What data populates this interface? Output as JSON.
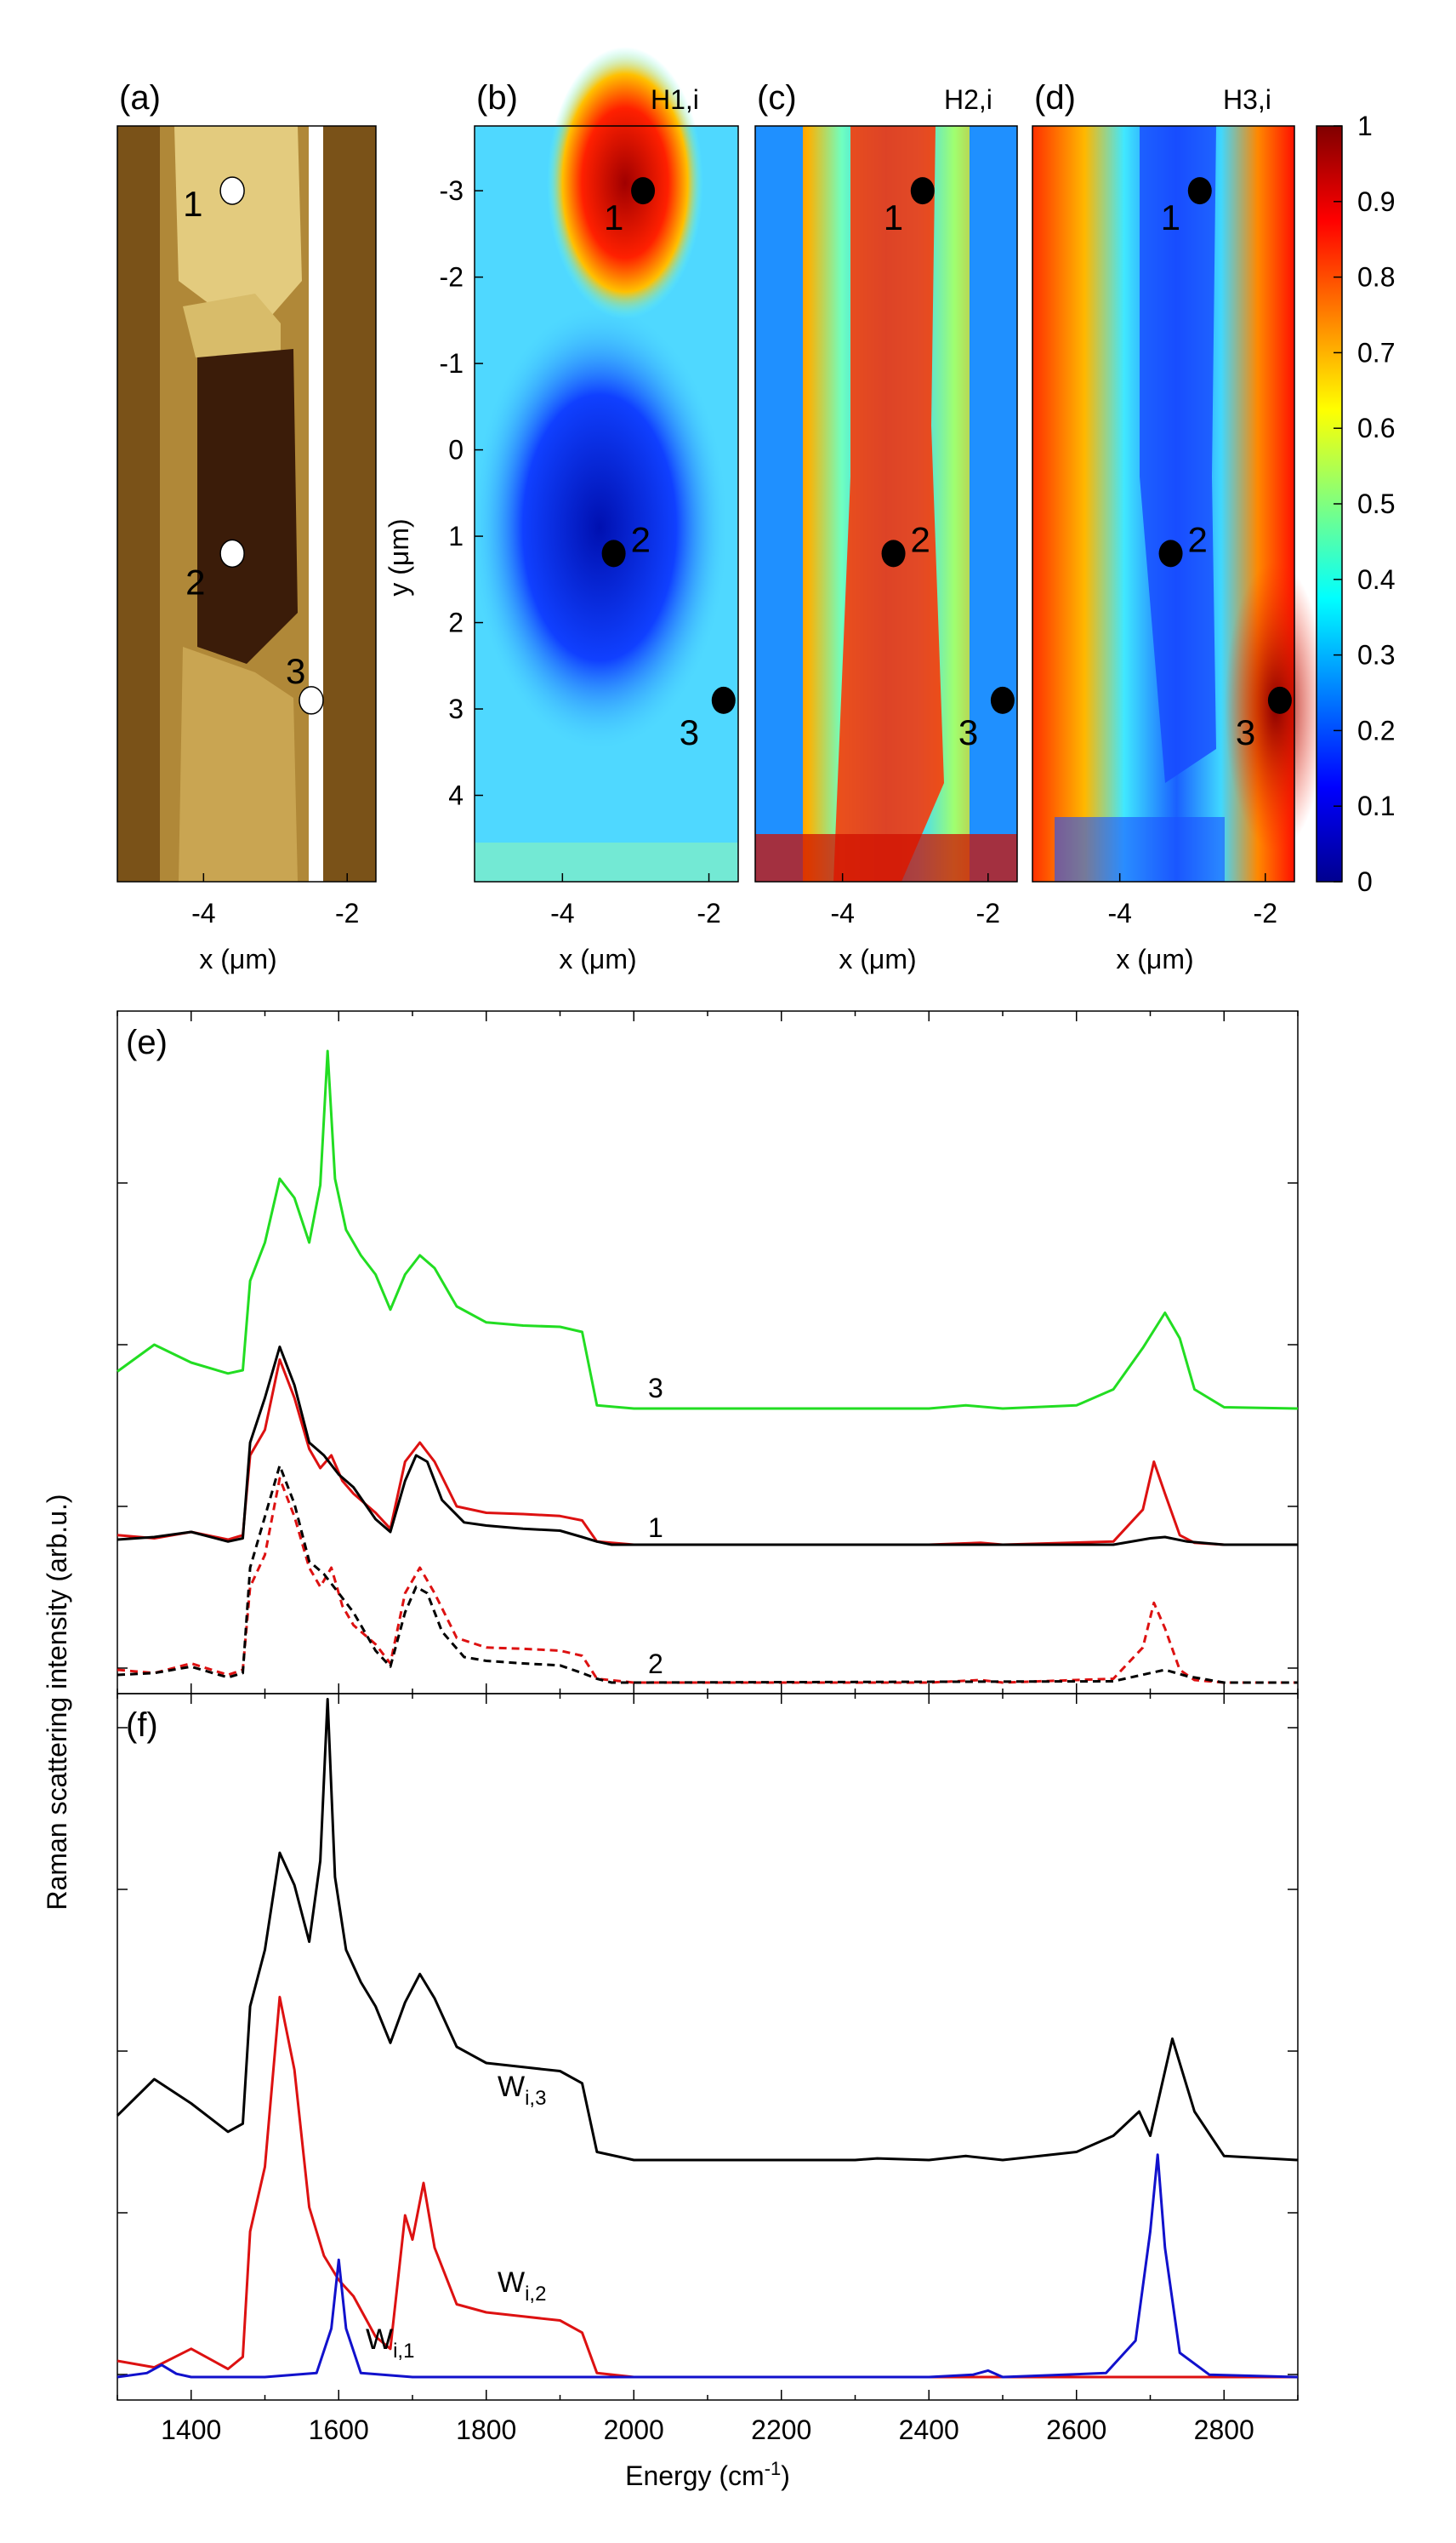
{
  "chart_data": [
    {
      "type": "heatmap",
      "panel_label": "(a)",
      "xlabel": "x (μm)",
      "x_ticks": [
        "-4",
        "-2"
      ],
      "markers": [
        {
          "label": "1",
          "x": -3.6,
          "y": -3.0
        },
        {
          "label": "2",
          "x": -3.6,
          "y": 1.2
        },
        {
          "label": "3",
          "x": -2.5,
          "y": 2.9
        }
      ]
    },
    {
      "type": "heatmap",
      "panel_label": "(b)",
      "component": "H1,i",
      "xlabel": "x (μm)",
      "ylabel": "y (μm)",
      "x_ticks": [
        "-4",
        "-2"
      ],
      "y_ticks": [
        "-3",
        "-2",
        "-1",
        "0",
        "1",
        "2",
        "3",
        "4"
      ],
      "markers": [
        {
          "label": "1",
          "x": -2.9,
          "y": -3.0
        },
        {
          "label": "2",
          "x": -3.3,
          "y": 1.2
        },
        {
          "label": "3",
          "x": -1.8,
          "y": 2.9
        }
      ]
    },
    {
      "type": "heatmap",
      "panel_label": "(c)",
      "component": "H2,i",
      "xlabel": "x (μm)",
      "x_ticks": [
        "-4",
        "-2"
      ],
      "markers": [
        {
          "label": "1",
          "x": -2.9,
          "y": -3.0
        },
        {
          "label": "2",
          "x": -3.3,
          "y": 1.2
        },
        {
          "label": "3",
          "x": -1.8,
          "y": 2.9
        }
      ]
    },
    {
      "type": "heatmap",
      "panel_label": "(d)",
      "component": "H3,i",
      "xlabel": "x (μm)",
      "x_ticks": [
        "-4",
        "-2"
      ],
      "colorbar_ticks": [
        "0",
        "0.1",
        "0.2",
        "0.3",
        "0.4",
        "0.5",
        "0.6",
        "0.7",
        "0.8",
        "0.9",
        "1"
      ],
      "markers": [
        {
          "label": "1",
          "x": -2.9,
          "y": -3.0
        },
        {
          "label": "2",
          "x": -3.3,
          "y": 1.2
        },
        {
          "label": "3",
          "x": -1.8,
          "y": 2.9
        }
      ]
    },
    {
      "type": "line",
      "panel_label": "(e)",
      "xlim": [
        1300,
        2900
      ],
      "series": [
        {
          "name": "3",
          "color": "#22dd22",
          "x": [
            1300,
            1350,
            1400,
            1450,
            1470,
            1480,
            1500,
            1520,
            1540,
            1560,
            1575,
            1585,
            1595,
            1610,
            1630,
            1650,
            1670,
            1690,
            1710,
            1730,
            1760,
            1800,
            1850,
            1900,
            1930,
            1950,
            2000,
            2400,
            2450,
            2500,
            2600,
            2650,
            2690,
            2720,
            2740,
            2760,
            2800,
            2900
          ],
          "y": [
            0.58,
            1.0,
            0.72,
            0.55,
            0.6,
            2.0,
            2.6,
            3.6,
            3.3,
            2.6,
            3.5,
            5.6,
            3.6,
            2.8,
            2.4,
            2.1,
            1.55,
            2.1,
            2.4,
            2.2,
            1.6,
            1.35,
            1.3,
            1.28,
            1.2,
            0.05,
            0.0,
            0.0,
            0.05,
            0.0,
            0.05,
            0.3,
            0.95,
            1.5,
            1.1,
            0.3,
            0.02,
            0.0
          ]
        },
        {
          "name": "1",
          "color": "#dd1111",
          "x": [
            1300,
            1350,
            1400,
            1450,
            1470,
            1480,
            1500,
            1520,
            1540,
            1560,
            1575,
            1590,
            1605,
            1620,
            1650,
            1670,
            1690,
            1710,
            1730,
            1760,
            1800,
            1850,
            1900,
            1930,
            1950,
            2000,
            2400,
            2470,
            2500,
            2650,
            2690,
            2705,
            2720,
            2740,
            2760,
            2800,
            2900
          ],
          "y": [
            0.15,
            0.1,
            0.2,
            0.08,
            0.15,
            1.4,
            1.8,
            2.9,
            2.3,
            1.5,
            1.2,
            1.4,
            1.0,
            0.8,
            0.5,
            0.25,
            1.3,
            1.6,
            1.3,
            0.6,
            0.5,
            0.48,
            0.45,
            0.38,
            0.05,
            0.0,
            0.0,
            0.03,
            0.0,
            0.05,
            0.55,
            1.3,
            0.8,
            0.15,
            0.03,
            0.0,
            0.0
          ]
        },
        {
          "name": "1",
          "color": "#dd1111",
          "dashed": true,
          "x": [
            1300,
            1350,
            1400,
            1450,
            1470,
            1480,
            1500,
            1520,
            1540,
            1560,
            1575,
            1590,
            1605,
            1620,
            1650,
            1670,
            1690,
            1710,
            1730,
            1760,
            1800,
            1850,
            1900,
            1930,
            1950,
            2000,
            2400,
            2470,
            2500,
            2650,
            2690,
            2705,
            2720,
            2740,
            2760,
            2800,
            2900
          ],
          "y": [
            0.2,
            0.15,
            0.3,
            0.12,
            0.2,
            1.5,
            2.0,
            3.2,
            2.6,
            1.8,
            1.5,
            1.8,
            1.2,
            0.9,
            0.6,
            0.3,
            1.4,
            1.8,
            1.4,
            0.7,
            0.55,
            0.53,
            0.5,
            0.42,
            0.06,
            0.0,
            0.0,
            0.04,
            0.0,
            0.06,
            0.55,
            1.25,
            0.85,
            0.2,
            0.04,
            0.0,
            0.0
          ]
        },
        {
          "name": "2",
          "color": "#000000",
          "x": [
            1300,
            1350,
            1400,
            1450,
            1470,
            1480,
            1500,
            1520,
            1540,
            1560,
            1580,
            1600,
            1620,
            1650,
            1670,
            1690,
            1705,
            1720,
            1740,
            1770,
            1800,
            1850,
            1900,
            1930,
            1950,
            1970,
            2000,
            2650,
            2700,
            2720,
            2750,
            2800,
            2900
          ],
          "y": [
            0.08,
            0.12,
            0.2,
            0.05,
            0.1,
            1.6,
            2.3,
            3.1,
            2.5,
            1.6,
            1.4,
            1.1,
            0.9,
            0.4,
            0.2,
            1.0,
            1.4,
            1.3,
            0.7,
            0.35,
            0.3,
            0.25,
            0.22,
            0.12,
            0.05,
            0.0,
            0.0,
            0.0,
            0.1,
            0.12,
            0.05,
            0.0,
            0.0
          ]
        },
        {
          "name": "2",
          "color": "#000000",
          "dashed": true,
          "x": [
            1300,
            1350,
            1400,
            1450,
            1470,
            1480,
            1500,
            1520,
            1540,
            1560,
            1580,
            1600,
            1620,
            1650,
            1670,
            1690,
            1705,
            1720,
            1740,
            1770,
            1800,
            1850,
            1900,
            1930,
            1950,
            1970,
            2000,
            2650,
            2700,
            2720,
            2750,
            2800,
            2900
          ],
          "y": [
            0.12,
            0.15,
            0.25,
            0.08,
            0.15,
            1.8,
            2.6,
            3.4,
            2.8,
            1.9,
            1.7,
            1.4,
            1.1,
            0.5,
            0.25,
            1.1,
            1.5,
            1.4,
            0.8,
            0.4,
            0.34,
            0.3,
            0.27,
            0.15,
            0.06,
            0.0,
            0.0,
            0.02,
            0.15,
            0.2,
            0.1,
            0.0,
            0.0
          ]
        }
      ]
    },
    {
      "type": "line",
      "panel_label": "(f)",
      "xlabel": "Energy (cm-1)",
      "ylabel": "Raman scattering intensity (arb.u.)",
      "xlim": [
        1300,
        2900
      ],
      "x_ticks": [
        "1400",
        "1600",
        "1800",
        "2000",
        "2200",
        "2400",
        "2600",
        "2800"
      ],
      "series": [
        {
          "name": "Wi,3",
          "color": "#000000",
          "x": [
            1300,
            1350,
            1400,
            1450,
            1470,
            1480,
            1500,
            1520,
            1540,
            1560,
            1575,
            1585,
            1595,
            1610,
            1630,
            1650,
            1670,
            1690,
            1710,
            1730,
            1760,
            1800,
            1850,
            1900,
            1930,
            1950,
            2000,
            2300,
            2330,
            2400,
            2450,
            2500,
            2600,
            2650,
            2685,
            2700,
            2730,
            2760,
            2800,
            2900
          ],
          "y": [
            0.55,
            1.0,
            0.7,
            0.35,
            0.45,
            1.9,
            2.6,
            3.8,
            3.4,
            2.7,
            3.7,
            5.7,
            3.5,
            2.6,
            2.2,
            1.9,
            1.45,
            1.95,
            2.3,
            2.0,
            1.4,
            1.2,
            1.15,
            1.1,
            0.95,
            0.1,
            0.0,
            0.0,
            0.02,
            0.0,
            0.05,
            0.0,
            0.1,
            0.3,
            0.6,
            0.3,
            1.5,
            0.6,
            0.05,
            0.0
          ]
        },
        {
          "name": "Wi,2",
          "color": "#dd1111",
          "x": [
            1300,
            1350,
            1400,
            1450,
            1470,
            1480,
            1500,
            1520,
            1540,
            1560,
            1580,
            1600,
            1620,
            1650,
            1670,
            1690,
            1700,
            1715,
            1730,
            1760,
            1800,
            1850,
            1900,
            1930,
            1950,
            2000,
            2900
          ],
          "y": [
            0.2,
            0.12,
            0.35,
            0.1,
            0.25,
            1.8,
            2.6,
            4.7,
            3.8,
            2.1,
            1.5,
            1.2,
            1.0,
            0.5,
            0.35,
            2.0,
            1.7,
            2.4,
            1.6,
            0.9,
            0.8,
            0.75,
            0.7,
            0.55,
            0.05,
            0.0,
            0.0
          ]
        },
        {
          "name": "Wi,1",
          "color": "#1111cc",
          "x": [
            1300,
            1340,
            1360,
            1380,
            1400,
            1500,
            1570,
            1590,
            1600,
            1610,
            1630,
            1700,
            2400,
            2460,
            2480,
            2500,
            2640,
            2680,
            2700,
            2710,
            2720,
            2740,
            2780,
            2900
          ],
          "y": [
            0.0,
            0.05,
            0.15,
            0.04,
            0.0,
            0.0,
            0.05,
            0.6,
            1.45,
            0.6,
            0.05,
            0.0,
            0.0,
            0.03,
            0.08,
            0.0,
            0.05,
            0.45,
            1.8,
            2.75,
            1.6,
            0.3,
            0.03,
            0.0
          ]
        }
      ]
    }
  ],
  "colors": {
    "heatmap_low": "#00008f",
    "heatmap_high": "#800000",
    "afm_light": "#e6cf82",
    "afm_dark": "#3a1a08",
    "marker_white": "#ffffff",
    "marker_black": "#000000"
  }
}
